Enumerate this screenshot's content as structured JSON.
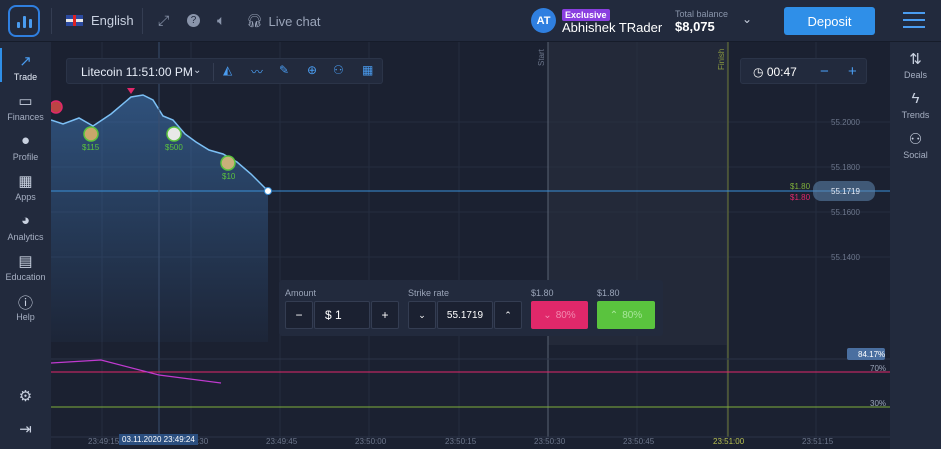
{
  "header": {
    "language": "English",
    "live_chat": "Live chat",
    "avatar_initials": "AT",
    "badge": "Exclusive",
    "username": "Abhishek TRader",
    "balance_label": "Total balance",
    "balance_value": "$8,075",
    "deposit_label": "Deposit",
    "icons": [
      "logo-icon",
      "flag-uk-icon",
      "fullscreen-icon",
      "help-icon",
      "sound-icon",
      "headset-icon",
      "chevron-down-icon",
      "menu-icon"
    ]
  },
  "left_nav": [
    {
      "label": "Trade",
      "icon": "trade-icon"
    },
    {
      "label": "Finances",
      "icon": "wallet-icon"
    },
    {
      "label": "Profile",
      "icon": "user-icon"
    },
    {
      "label": "Apps",
      "icon": "apps-icon"
    },
    {
      "label": "Analytics",
      "icon": "pie-icon"
    },
    {
      "label": "Education",
      "icon": "book-icon"
    },
    {
      "label": "Help",
      "icon": "info-icon"
    }
  ],
  "right_nav": [
    {
      "label": "Deals",
      "icon": "deals-icon"
    },
    {
      "label": "Trends",
      "icon": "bolt-icon"
    },
    {
      "label": "Social",
      "icon": "social-icon"
    }
  ],
  "toolbar": {
    "asset": "Litecoin 11:51:00 PM",
    "tools": [
      "chart-type-icon",
      "indicators-icon",
      "draw-icon",
      "crosshair-icon",
      "add-user-icon",
      "layout-icon"
    ]
  },
  "timer": {
    "value": "00:47",
    "minus": "−",
    "plus": "+"
  },
  "chart": {
    "start_label": "Start",
    "finish_label": "Finish",
    "price_ticks": [
      "55.2000",
      "55.1800",
      "55.1600",
      "55.1400"
    ],
    "current_price": "55.1719",
    "payout_up": "$1.80",
    "payout_down": "$1.80",
    "time_ticks": [
      "23:49:15",
      "23:49:30",
      "23:49:45",
      "23:50:00",
      "23:50:15",
      "23:50:30",
      "23:50:45",
      "23:51:00",
      "23:51:15"
    ],
    "cursor_time": "03.11.2020 23:49:24",
    "trader_markers": [
      "$115",
      "$500",
      "$10"
    ],
    "indicator_value": "84.17%",
    "indicator_levels": [
      "70%",
      "30%"
    ]
  },
  "trade_panel": {
    "amount_label": "Amount",
    "amount_value": "$ 1",
    "strike_label": "Strike rate",
    "strike_value": "55.1719",
    "put_payout": "$1.80",
    "call_payout": "$1.80",
    "put_percent": "80%",
    "call_percent": "80%"
  }
}
